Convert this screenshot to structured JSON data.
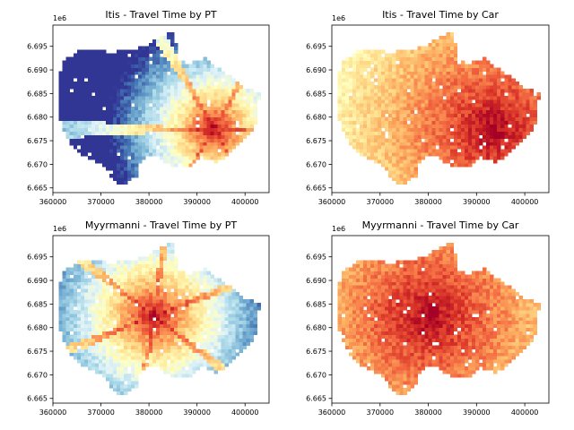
{
  "chart_data": [
    {
      "type": "heatmap",
      "title": "Itis - Travel Time by PT",
      "xlabel": "",
      "ylabel": "",
      "xlim": [
        360000,
        405000
      ],
      "ylim": [
        6664000,
        6699500
      ],
      "xticks": [
        360000,
        370000,
        380000,
        390000,
        400000
      ],
      "yticks": [
        6665000,
        6670000,
        6675000,
        6680000,
        6685000,
        6690000,
        6695000
      ],
      "xtick_labels": [
        "360000",
        "370000",
        "380000",
        "390000",
        "400000"
      ],
      "ytick_labels": [
        "6.665",
        "6.670",
        "6.675",
        "6.680",
        "6.685",
        "6.690",
        "6.695"
      ],
      "y_offset_label": "1e6",
      "colormap": "RdYlBu_r",
      "hotspot": [
        393500,
        6677500
      ],
      "spread": 0.85,
      "grid": false
    },
    {
      "type": "heatmap",
      "title": "Itis - Travel Time by Car",
      "xlabel": "",
      "ylabel": "",
      "xlim": [
        360000,
        405000
      ],
      "ylim": [
        6664000,
        6699500
      ],
      "xticks": [
        360000,
        370000,
        380000,
        390000,
        400000
      ],
      "yticks": [
        6665000,
        6670000,
        6675000,
        6680000,
        6685000,
        6690000,
        6695000
      ],
      "xtick_labels": [
        "360000",
        "370000",
        "380000",
        "390000",
        "400000"
      ],
      "ytick_labels": [
        "6.665",
        "6.670",
        "6.675",
        "6.680",
        "6.685",
        "6.690",
        "6.695"
      ],
      "y_offset_label": "1e6",
      "colormap": "RdYlBu_r",
      "hotspot": [
        393500,
        6677500
      ],
      "spread": 2.6,
      "grid": false
    },
    {
      "type": "heatmap",
      "title": "Myyrmanni - Travel Time by PT",
      "xlabel": "",
      "ylabel": "",
      "xlim": [
        360000,
        405000
      ],
      "ylim": [
        6664000,
        6699500
      ],
      "xticks": [
        360000,
        370000,
        380000,
        390000,
        400000
      ],
      "yticks": [
        6665000,
        6670000,
        6675000,
        6680000,
        6685000,
        6690000,
        6695000
      ],
      "xtick_labels": [
        "360000",
        "370000",
        "380000",
        "390000",
        "400000"
      ],
      "ytick_labels": [
        "6.665",
        "6.670",
        "6.675",
        "6.680",
        "6.685",
        "6.690",
        "6.695"
      ],
      "y_offset_label": "1e6",
      "colormap": "RdYlBu_r",
      "hotspot": [
        381000,
        6682500
      ],
      "spread": 1.0,
      "grid": false
    },
    {
      "type": "heatmap",
      "title": "Myyrmanni - Travel Time by Car",
      "xlabel": "",
      "ylabel": "",
      "xlim": [
        360000,
        405000
      ],
      "ylim": [
        6664000,
        6699500
      ],
      "xticks": [
        360000,
        370000,
        380000,
        390000,
        400000
      ],
      "yticks": [
        6665000,
        6670000,
        6675000,
        6680000,
        6685000,
        6690000,
        6695000
      ],
      "xtick_labels": [
        "360000",
        "370000",
        "380000",
        "390000",
        "400000"
      ],
      "ytick_labels": [
        "6.665",
        "6.670",
        "6.675",
        "6.680",
        "6.685",
        "6.690",
        "6.695"
      ],
      "y_offset_label": "1e6",
      "colormap": "RdYlBu_r",
      "hotspot": [
        380000,
        6682500
      ],
      "spread": 2.6,
      "grid": false
    }
  ]
}
